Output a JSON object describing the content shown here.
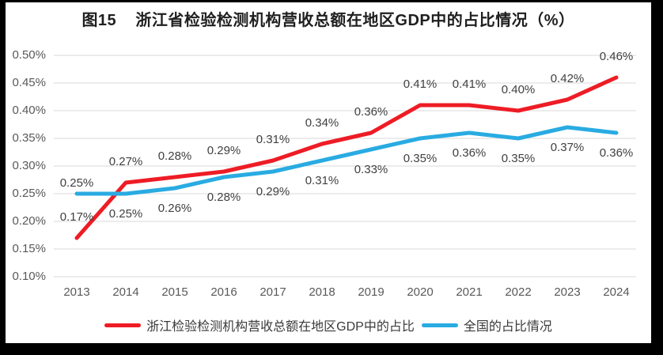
{
  "frame": {
    "background": "#000000",
    "canvas_background": "#ffffff"
  },
  "chart_data": {
    "type": "line",
    "title": "图15    浙江省检验检测机构营收总额在地区GDP中的占比情况（%）",
    "categories": [
      "2013",
      "2014",
      "2015",
      "2016",
      "2017",
      "2018",
      "2019",
      "2020",
      "2021",
      "2022",
      "2023",
      "2024"
    ],
    "series": [
      {
        "key": "zhejiang",
        "name": "浙江检验检测机构营收总额在地区GDP中的占比",
        "color": "#EE1C25",
        "values": [
          0.17,
          0.27,
          0.28,
          0.29,
          0.31,
          0.34,
          0.36,
          0.41,
          0.41,
          0.4,
          0.42,
          0.46
        ],
        "labels": [
          "0.17%",
          "0.27%",
          "0.28%",
          "0.29%",
          "0.31%",
          "0.34%",
          "0.36%",
          "0.41%",
          "0.41%",
          "0.40%",
          "0.42%",
          "0.46%"
        ],
        "label_position": "above"
      },
      {
        "key": "national",
        "name": "全国的占比情况",
        "color": "#29ABE2",
        "values": [
          0.25,
          0.25,
          0.26,
          0.28,
          0.29,
          0.31,
          0.33,
          0.35,
          0.36,
          0.35,
          0.37,
          0.36
        ],
        "labels": [
          "0.25%",
          "0.25%",
          "0.26%",
          "0.28%",
          "0.29%",
          "0.31%",
          "0.33%",
          "0.35%",
          "0.36%",
          "0.35%",
          "0.37%",
          "0.36%"
        ],
        "label_position": "below",
        "label_position_overrides": {
          "0": "above-near"
        }
      }
    ],
    "ylim": [
      0.1,
      0.5
    ],
    "yticks": [
      {
        "value": 0.5,
        "label": "0.50%"
      },
      {
        "value": 0.45,
        "label": "0.45%"
      },
      {
        "value": 0.4,
        "label": "0.40%"
      },
      {
        "value": 0.35,
        "label": "0.35%"
      },
      {
        "value": 0.3,
        "label": "0.30%"
      },
      {
        "value": 0.25,
        "label": "0.25%"
      },
      {
        "value": 0.2,
        "label": "0.20%"
      },
      {
        "value": 0.15,
        "label": "0.15%"
      },
      {
        "value": 0.1,
        "label": "0.10%"
      }
    ],
    "grid": true,
    "legend_position": "bottom",
    "xlabel": "",
    "ylabel": ""
  },
  "style": {
    "gridline_color": "#D9D9D9",
    "axis_text_color": "#595959",
    "data_label_color": "#404040",
    "line_width": 5
  }
}
